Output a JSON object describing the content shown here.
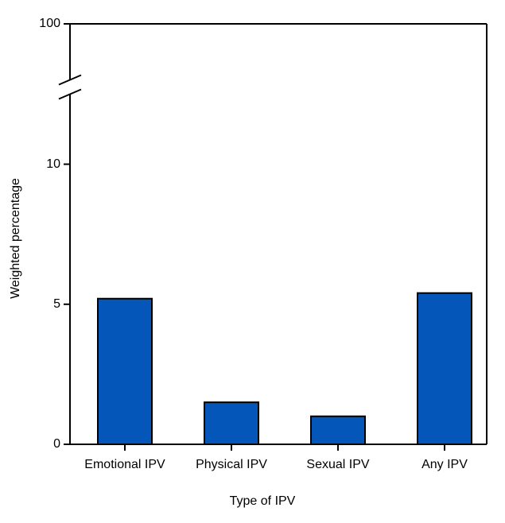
{
  "chart_data": {
    "type": "bar",
    "x_label": "Type of IPV",
    "y_label": "Weighted percentage",
    "categories": [
      "Emotional IPV",
      "Physical IPV",
      "Sexual IPV",
      "Any IPV"
    ],
    "values": [
      5.2,
      1.5,
      1.0,
      5.4
    ],
    "color": "#0457b8",
    "ylim": [
      0,
      100
    ],
    "yticks": [
      0,
      5,
      10,
      100
    ],
    "ybreak": [
      12.5,
      98
    ],
    "grid": false
  }
}
